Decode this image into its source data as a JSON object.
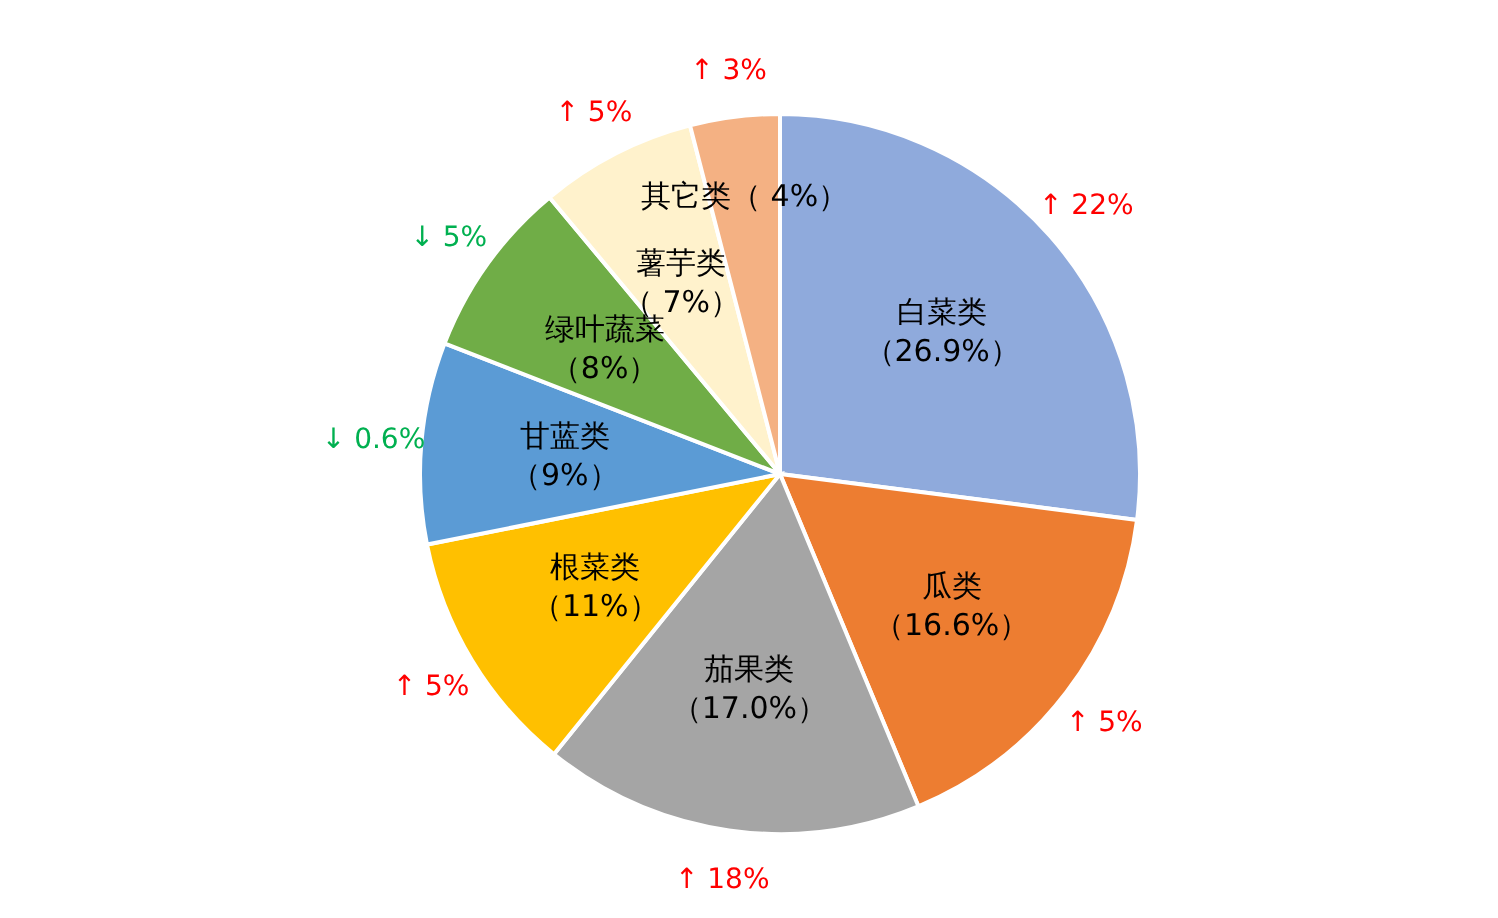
{
  "chart_data": {
    "type": "pie",
    "categories": [
      "白菜类",
      "瓜类",
      "茄果类",
      "根菜类",
      "甘蓝类",
      "绿叶蔬菜",
      "薯芋类",
      "其它类"
    ],
    "values": [
      26.9,
      16.6,
      17.0,
      11,
      9,
      8,
      7,
      4
    ],
    "value_labels": [
      "（26.9%）",
      "（16.6%）",
      "（17.0%）",
      "（11%）",
      "（9%）",
      "（8%）",
      "（ 7%）",
      "（ 4%）"
    ],
    "colors": [
      "#8faadc",
      "#ed7d31",
      "#a5a5a5",
      "#ffc000",
      "#5b9bd5",
      "#70ad47",
      "#fff2cc",
      "#f4b183"
    ],
    "annotations": [
      {
        "text": "↑ 22%",
        "x": "白菜类"
      },
      {
        "text": "↑ 5%",
        "x": "瓜类"
      },
      {
        "text": "↑ 18%",
        "x": "茄果类"
      },
      {
        "text": "↑ 5%",
        "x": "根菜类"
      },
      {
        "text": "↓ 0.6%",
        "x": "甘蓝类"
      },
      {
        "text": "↓ 5%",
        "x": "绿叶蔬菜"
      },
      {
        "text": "↑ 5%",
        "x": "薯芋类"
      },
      {
        "text": "↑ 3%",
        "x": "其它类"
      }
    ],
    "legend": false
  }
}
